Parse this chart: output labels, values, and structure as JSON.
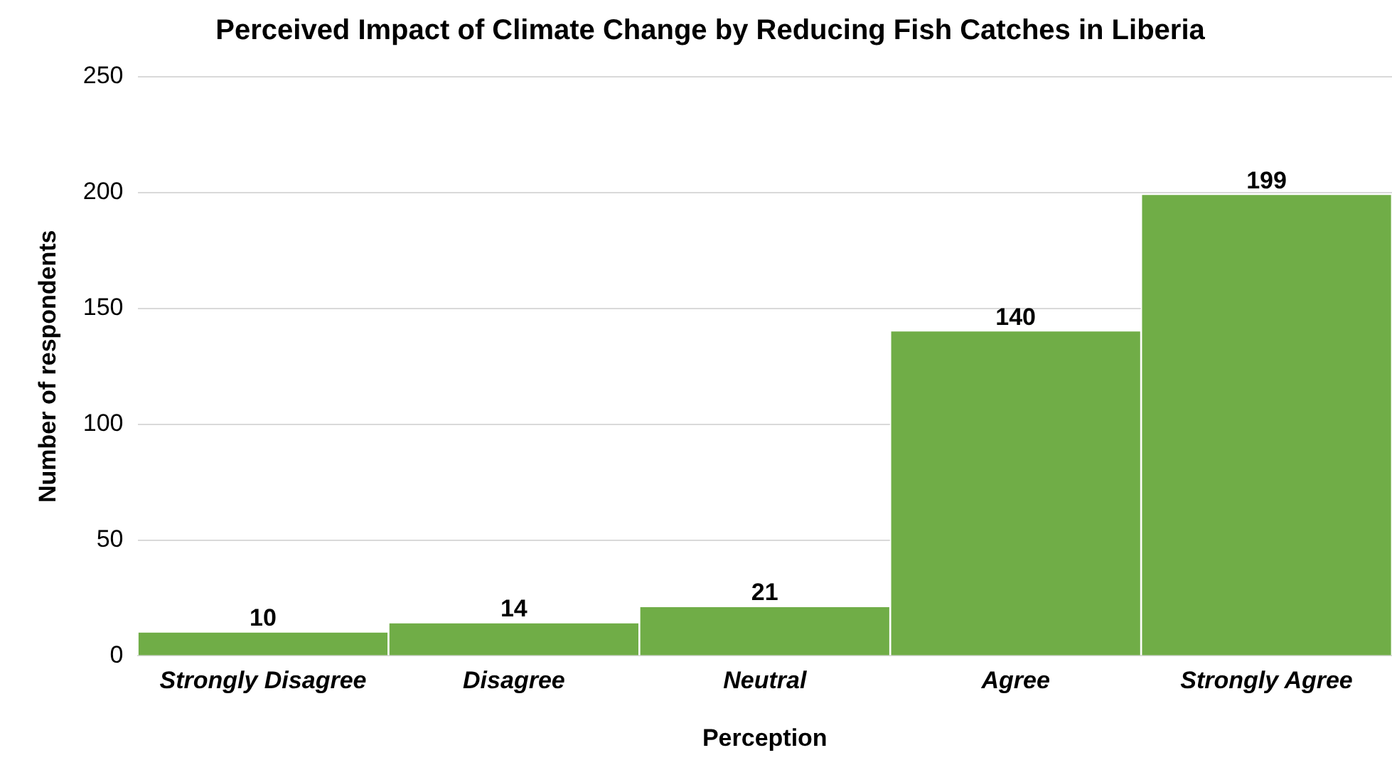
{
  "chart_data": {
    "type": "bar",
    "title": "Perceived Impact of Climate Change by Reducing Fish Catches in Liberia",
    "xlabel": "Perception",
    "ylabel": "Number of respondents",
    "categories": [
      "Strongly Disagree",
      "Disagree",
      "Neutral",
      "Agree",
      "Strongly Agree"
    ],
    "values": [
      10,
      14,
      21,
      140,
      199
    ],
    "color": "#70ad47",
    "ylim": [
      0,
      250
    ],
    "yticks": [
      0,
      50,
      100,
      150,
      200,
      250
    ],
    "grid": "y",
    "data_labels": true
  }
}
